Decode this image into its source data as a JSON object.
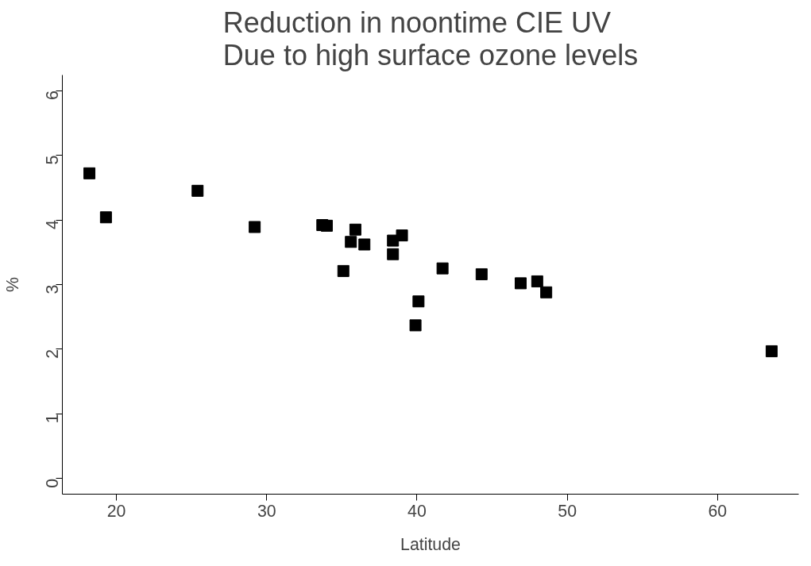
{
  "chart_data": {
    "type": "scatter",
    "title": "Reduction in noontime CIE UV\nDue to high surface ozone levels",
    "xlabel": "Latitude",
    "ylabel": "%",
    "x": [
      18.2,
      19.3,
      25.4,
      29.2,
      33.7,
      34.0,
      35.1,
      35.6,
      35.9,
      36.5,
      38.4,
      38.4,
      39.0,
      39.9,
      40.1,
      41.7,
      44.3,
      46.9,
      48.0,
      48.6,
      63.6
    ],
    "series": [
      {
        "color": "#000000",
        "values": [
          4.72,
          4.04,
          4.45,
          3.89,
          3.92,
          3.91,
          3.21,
          3.66,
          3.85,
          3.62,
          3.68,
          3.47,
          3.76,
          2.37,
          2.74,
          3.25,
          3.16,
          3.02,
          3.05,
          2.88,
          1.97
        ]
      }
    ],
    "xlim": [
      16.4,
      65.4
    ],
    "ylim": [
      -0.24,
      6.24
    ],
    "xticks": [
      20,
      30,
      40,
      50,
      60
    ],
    "yticks": [
      0,
      1,
      2,
      3,
      4,
      5,
      6
    ],
    "marker": "square",
    "grid": false
  }
}
